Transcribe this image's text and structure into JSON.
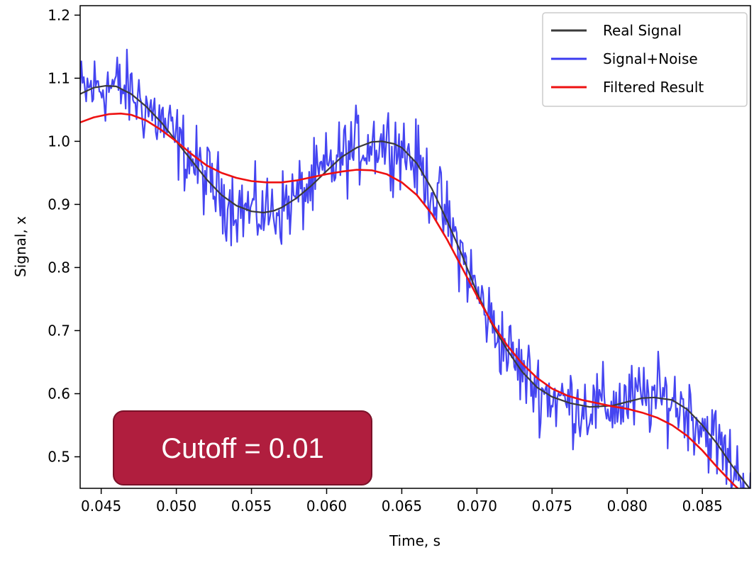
{
  "chart_data": {
    "type": "line",
    "title": "",
    "xlabel": "Time, s",
    "ylabel": "Signal, x",
    "xlim": [
      0.0436,
      0.0882
    ],
    "ylim": [
      0.45,
      1.215
    ],
    "xticks": [
      "0.045",
      "0.050",
      "0.055",
      "0.060",
      "0.065",
      "0.070",
      "0.075",
      "0.080",
      "0.085"
    ],
    "yticks": [
      "0.5",
      "0.6",
      "0.7",
      "0.8",
      "0.9",
      "1.0",
      "1.1",
      "1.2"
    ],
    "grid": false,
    "legend_position": "top-right",
    "series": [
      {
        "name": "Real Signal",
        "color": "#3a3a3a",
        "x": [
          0.0436,
          0.0445,
          0.0453,
          0.046,
          0.047,
          0.048,
          0.049,
          0.05,
          0.051,
          0.052,
          0.053,
          0.054,
          0.055,
          0.0558,
          0.0565,
          0.057,
          0.058,
          0.059,
          0.06,
          0.061,
          0.062,
          0.063,
          0.0637,
          0.0645,
          0.065,
          0.066,
          0.067,
          0.068,
          0.069,
          0.07,
          0.071,
          0.072,
          0.073,
          0.074,
          0.075,
          0.0762,
          0.0775,
          0.079,
          0.08,
          0.081,
          0.0818,
          0.083,
          0.084,
          0.085,
          0.086,
          0.087,
          0.0882
        ],
        "y": [
          1.075,
          1.085,
          1.088,
          1.087,
          1.075,
          1.055,
          1.03,
          1.0,
          0.97,
          0.94,
          0.915,
          0.898,
          0.889,
          0.887,
          0.89,
          0.895,
          0.91,
          0.93,
          0.953,
          0.975,
          0.99,
          0.999,
          1.0,
          0.996,
          0.99,
          0.965,
          0.925,
          0.875,
          0.82,
          0.76,
          0.71,
          0.67,
          0.635,
          0.61,
          0.595,
          0.585,
          0.579,
          0.581,
          0.587,
          0.593,
          0.594,
          0.59,
          0.575,
          0.55,
          0.52,
          0.485,
          0.448
        ]
      },
      {
        "name": "Signal+Noise",
        "color": "#3b3bf0",
        "x": [],
        "y": []
      },
      {
        "name": "Filtered Result",
        "color": "#ee1111",
        "x": [
          0.0436,
          0.0445,
          0.0455,
          0.0463,
          0.047,
          0.048,
          0.049,
          0.05,
          0.051,
          0.052,
          0.053,
          0.054,
          0.055,
          0.056,
          0.057,
          0.058,
          0.059,
          0.06,
          0.061,
          0.062,
          0.063,
          0.064,
          0.065,
          0.066,
          0.067,
          0.068,
          0.069,
          0.07,
          0.071,
          0.072,
          0.073,
          0.074,
          0.075,
          0.076,
          0.077,
          0.078,
          0.079,
          0.08,
          0.081,
          0.082,
          0.083,
          0.084,
          0.085,
          0.086,
          0.087,
          0.0878
        ],
        "y": [
          1.03,
          1.038,
          1.043,
          1.044,
          1.042,
          1.033,
          1.018,
          1.0,
          0.98,
          0.962,
          0.95,
          0.942,
          0.937,
          0.935,
          0.935,
          0.938,
          0.943,
          0.948,
          0.952,
          0.955,
          0.954,
          0.948,
          0.935,
          0.915,
          0.885,
          0.845,
          0.8,
          0.755,
          0.712,
          0.677,
          0.648,
          0.625,
          0.608,
          0.597,
          0.59,
          0.585,
          0.58,
          0.576,
          0.57,
          0.562,
          0.55,
          0.533,
          0.51,
          0.483,
          0.458,
          0.44
        ]
      }
    ]
  },
  "callout": {
    "text": "Cutoff = 0.01"
  }
}
